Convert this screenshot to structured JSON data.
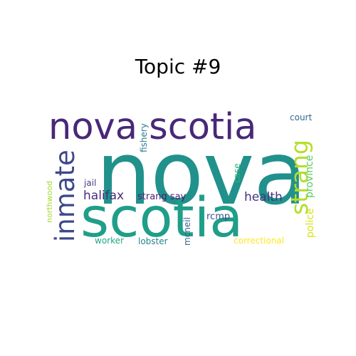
{
  "title": "Topic #9",
  "words": [
    {
      "text": "nova",
      "color": "#21918c"
    },
    {
      "text": "scotia",
      "color": "#1f9e89"
    },
    {
      "text": "nova scotia",
      "color": "#482878"
    },
    {
      "text": "inmate",
      "color": "#3e4989"
    },
    {
      "text": "strang",
      "color": "#b5de2b"
    },
    {
      "text": "halifax",
      "color": "#472c7a"
    },
    {
      "text": "strang say",
      "color": "#481f70"
    },
    {
      "text": "health",
      "color": "#46337e"
    },
    {
      "text": "province",
      "color": "#5ec962"
    },
    {
      "text": "police",
      "color": "#d8e219"
    },
    {
      "text": "fishery",
      "color": "#2a788e"
    },
    {
      "text": "court",
      "color": "#31688e"
    },
    {
      "text": "case",
      "color": "#2fb47c"
    },
    {
      "text": "jail",
      "color": "#433e85"
    },
    {
      "text": "northwood",
      "color": "#a5db36"
    },
    {
      "text": "rcmp",
      "color": "#3b528b"
    },
    {
      "text": "mcneil",
      "color": "#35608d"
    },
    {
      "text": "worker",
      "color": "#22a884"
    },
    {
      "text": "lobster",
      "color": "#26828e"
    },
    {
      "text": "correctional",
      "color": "#fde725"
    }
  ]
}
